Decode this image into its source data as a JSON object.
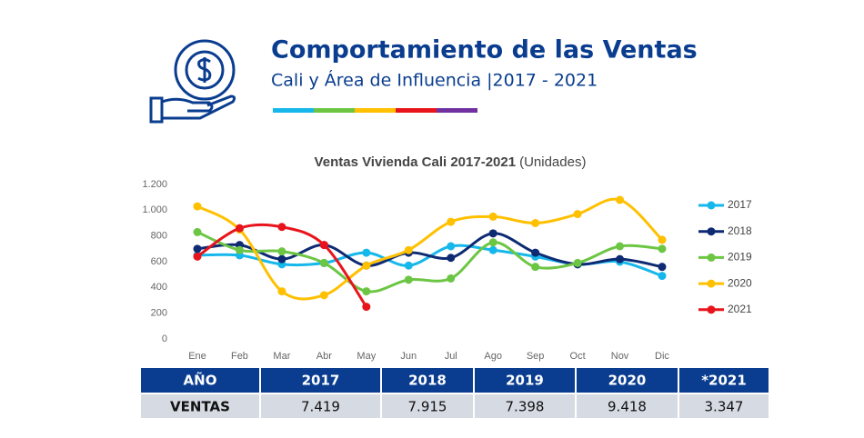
{
  "header": {
    "title": "Comportamiento de las Ventas",
    "subtitle": "Cali y Área de Influencia |2017 - 2021"
  },
  "chart_data": {
    "type": "line",
    "title": "Ventas Vivienda Cali 2017-2021",
    "unit": "(Unidades)",
    "categories": [
      "Ene",
      "Feb",
      "Mar",
      "Abr",
      "May",
      "Jun",
      "Jul",
      "Ago",
      "Sep",
      "Oct",
      "Nov",
      "Dic"
    ],
    "series": [
      {
        "name": "2017",
        "color": "#16b7ea",
        "values": [
          650,
          650,
          580,
          590,
          670,
          570,
          720,
          690,
          640,
          580,
          600,
          490
        ]
      },
      {
        "name": "2018",
        "color": "#0d2a73",
        "values": [
          700,
          730,
          620,
          730,
          570,
          670,
          630,
          820,
          670,
          580,
          620,
          560
        ]
      },
      {
        "name": "2019",
        "color": "#6cc644",
        "values": [
          830,
          690,
          680,
          590,
          370,
          460,
          470,
          750,
          560,
          590,
          720,
          700
        ]
      },
      {
        "name": "2020",
        "color": "#ffc000",
        "values": [
          1030,
          850,
          370,
          340,
          570,
          690,
          910,
          950,
          900,
          970,
          1080,
          770
        ]
      },
      {
        "name": "2021",
        "color": "#e8141b",
        "values": [
          640,
          860,
          870,
          730,
          250,
          null,
          null,
          null,
          null,
          null,
          null,
          null
        ]
      }
    ],
    "ylim": [
      0,
      1200
    ],
    "yticks": [
      0,
      200,
      400,
      600,
      800,
      {
        "value": 1000,
        "label": "1.000"
      },
      {
        "value": 1200,
        "label": "1.200"
      }
    ],
    "legend": "right",
    "grid": false
  },
  "table": {
    "header": [
      "AÑO",
      "2017",
      "2018",
      "2019",
      "2020",
      "*2021"
    ],
    "rows": [
      [
        "VENTAS",
        "7.419",
        "7.915",
        "7.398",
        "9.418",
        "3.347"
      ]
    ]
  }
}
